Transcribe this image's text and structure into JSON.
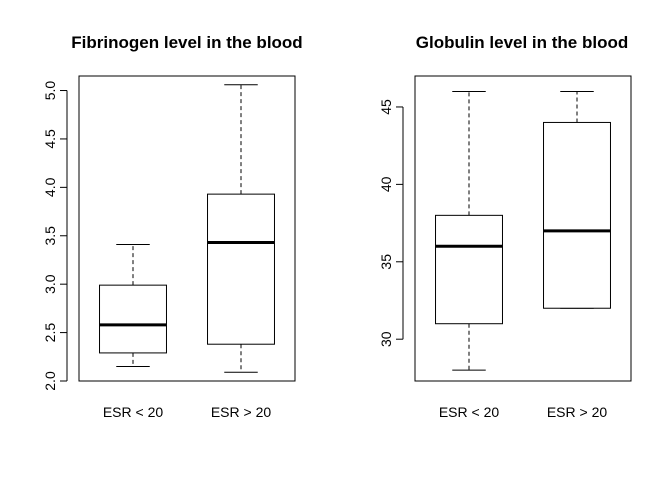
{
  "chart_data": [
    {
      "type": "boxplot",
      "title": "Fibrinogen level in the blood",
      "xlabel": "",
      "ylabel": "",
      "categories": [
        "ESR < 20",
        "ESR > 20"
      ],
      "ylim": [
        2.0,
        5.15
      ],
      "yticks": [
        "2.0",
        "2.5",
        "3.0",
        "3.5",
        "4.0",
        "4.5",
        "5.0"
      ],
      "boxes": [
        {
          "category": "ESR < 20",
          "whisker_low": 2.15,
          "q1": 2.29,
          "median": 2.58,
          "q3": 2.99,
          "whisker_high": 3.41
        },
        {
          "category": "ESR > 20",
          "whisker_low": 2.09,
          "q1": 2.38,
          "median": 3.43,
          "q3": 3.93,
          "whisker_high": 5.06
        }
      ],
      "grid": false,
      "legend": "none"
    },
    {
      "type": "boxplot",
      "title": "Globulin level in the blood",
      "xlabel": "",
      "ylabel": "",
      "categories": [
        "ESR < 20",
        "ESR > 20"
      ],
      "ylim": [
        27.3,
        47.0
      ],
      "yticks": [
        "30",
        "35",
        "40",
        "45"
      ],
      "boxes": [
        {
          "category": "ESR < 20",
          "whisker_low": 28,
          "q1": 31,
          "median": 36,
          "q3": 38,
          "whisker_high": 46
        },
        {
          "category": "ESR > 20",
          "whisker_low": 32,
          "q1": 32,
          "median": 37,
          "q3": 44,
          "whisker_high": 46
        }
      ],
      "grid": false,
      "legend": "none"
    }
  ]
}
